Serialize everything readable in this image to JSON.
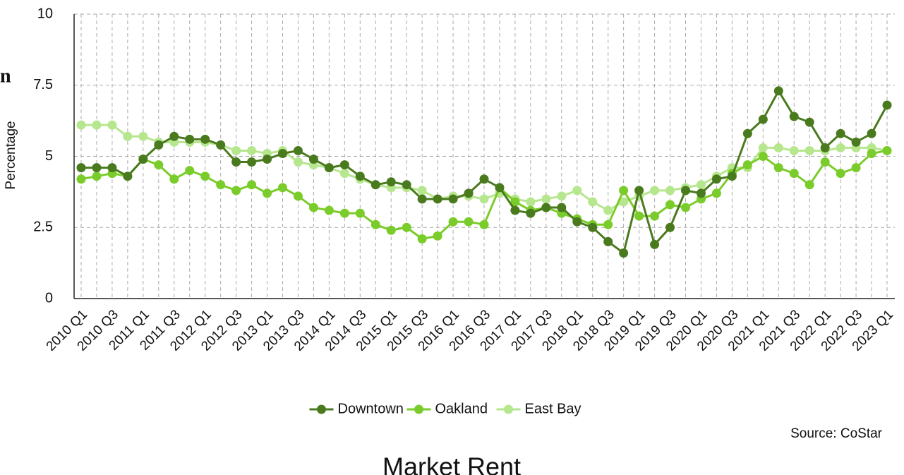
{
  "chart_data": {
    "type": "line",
    "fragment": "n",
    "y_label": "Percentage",
    "source": "Source:  CoStar",
    "title": "Market Rent",
    "categories": [
      "2010 Q1",
      null,
      "2010 Q3",
      null,
      "2011 Q1",
      null,
      "2011 Q3",
      null,
      "2012 Q1",
      null,
      "2012 Q3",
      null,
      "2013 Q1",
      null,
      "2013 Q3",
      null,
      "2014 Q1",
      null,
      "2014 Q3",
      null,
      "2015 Q1",
      null,
      "2015 Q3",
      null,
      "2016 Q1",
      null,
      "2016 Q3",
      null,
      "2017 Q1",
      null,
      "2017 Q3",
      null,
      "2018 Q1",
      null,
      "2018 Q3",
      null,
      "2019 Q1",
      null,
      "2019 Q3",
      null,
      "2020 Q1",
      null,
      "2020 Q3",
      null,
      "2021 Q1",
      null,
      "2021 Q3",
      null,
      "2022 Q1",
      null,
      "2022 Q3",
      null,
      "2023 Q1"
    ],
    "series": [
      {
        "name": "Downtown",
        "color": "#4a7a1e",
        "values": [
          4.6,
          4.6,
          4.6,
          4.3,
          4.9,
          5.4,
          5.7,
          5.6,
          5.6,
          5.4,
          4.8,
          4.8,
          4.9,
          5.1,
          5.2,
          4.9,
          4.6,
          4.7,
          4.3,
          4.0,
          4.1,
          4.0,
          3.5,
          3.5,
          3.5,
          3.7,
          4.2,
          3.9,
          3.1,
          3.0,
          3.2,
          3.2,
          2.7,
          2.5,
          2.0,
          1.6,
          3.8,
          1.9,
          2.5,
          3.8,
          3.7,
          4.2,
          4.3,
          5.8,
          6.3,
          7.3,
          6.4,
          6.2,
          5.3,
          5.8,
          5.5,
          5.8,
          6.8
        ]
      },
      {
        "name": "Oakland",
        "color": "#7acc2a",
        "values": [
          4.2,
          4.3,
          4.4,
          4.3,
          4.9,
          4.7,
          4.2,
          4.5,
          4.3,
          4.0,
          3.8,
          4.0,
          3.7,
          3.9,
          3.6,
          3.2,
          3.1,
          3.0,
          3.0,
          2.6,
          2.4,
          2.5,
          2.1,
          2.2,
          2.7,
          2.7,
          2.6,
          3.9,
          3.4,
          3.1,
          3.2,
          3.0,
          2.8,
          2.6,
          2.6,
          3.8,
          2.9,
          2.9,
          3.3,
          3.2,
          3.5,
          3.7,
          4.4,
          4.7,
          5.0,
          4.6,
          4.4,
          4.0,
          4.8,
          4.4,
          4.6,
          5.1,
          5.2
        ]
      },
      {
        "name": "East Bay",
        "color": "#b6e68e",
        "values": [
          6.1,
          6.1,
          6.1,
          5.7,
          5.7,
          5.5,
          5.5,
          5.5,
          5.5,
          5.4,
          5.2,
          5.2,
          5.1,
          5.2,
          4.8,
          4.7,
          4.6,
          4.4,
          4.2,
          4.0,
          3.9,
          3.9,
          3.8,
          3.5,
          3.6,
          3.6,
          3.5,
          3.7,
          3.5,
          3.4,
          3.5,
          3.6,
          3.8,
          3.4,
          3.1,
          3.4,
          3.6,
          3.8,
          3.8,
          3.9,
          4.0,
          4.3,
          4.6,
          4.6,
          5.3,
          5.3,
          5.2,
          5.2,
          5.2,
          5.3,
          5.3,
          5.3,
          5.2
        ]
      }
    ],
    "ylim": [
      0,
      10
    ],
    "yticks": [
      0,
      2.5,
      5,
      7.5,
      10
    ],
    "grid": true,
    "legend": "bottom"
  }
}
